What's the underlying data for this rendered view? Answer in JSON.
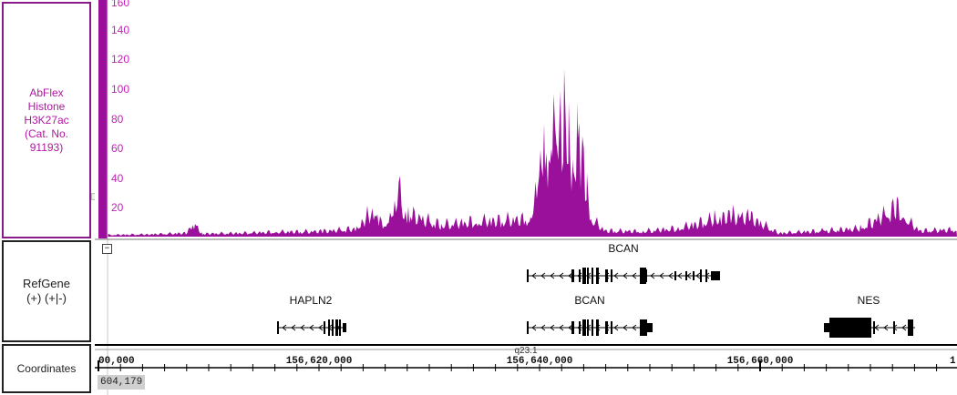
{
  "track": {
    "name": "AbFlex\nHistone\nH3K27ac\n(Cat. No.\n 91193)",
    "color": "#9b109b",
    "axis_ticks": [
      "160",
      "140",
      "120",
      "100",
      "80",
      "60",
      "40",
      "20"
    ]
  },
  "refgene": {
    "label": "RefGene\n(+) (+|-)",
    "collapse_icon": "minus-box-icon",
    "genes": [
      {
        "name": "BCAN",
        "strand": "+"
      },
      {
        "name": "HAPLN2",
        "strand": "+"
      },
      {
        "name": "BCAN",
        "strand": "+"
      },
      {
        "name": "NES",
        "strand": "-"
      }
    ]
  },
  "coordinates": {
    "label": "Coordinates",
    "ruler_labels": [
      "00,000",
      "156,620,000",
      "156,640,000",
      "156,660,000",
      "1"
    ],
    "band": "q23.1",
    "position_readout": "604,179"
  },
  "colors": {
    "signal": "#9b109b",
    "axis_text": "#c420b8",
    "gene": "#000000"
  }
}
